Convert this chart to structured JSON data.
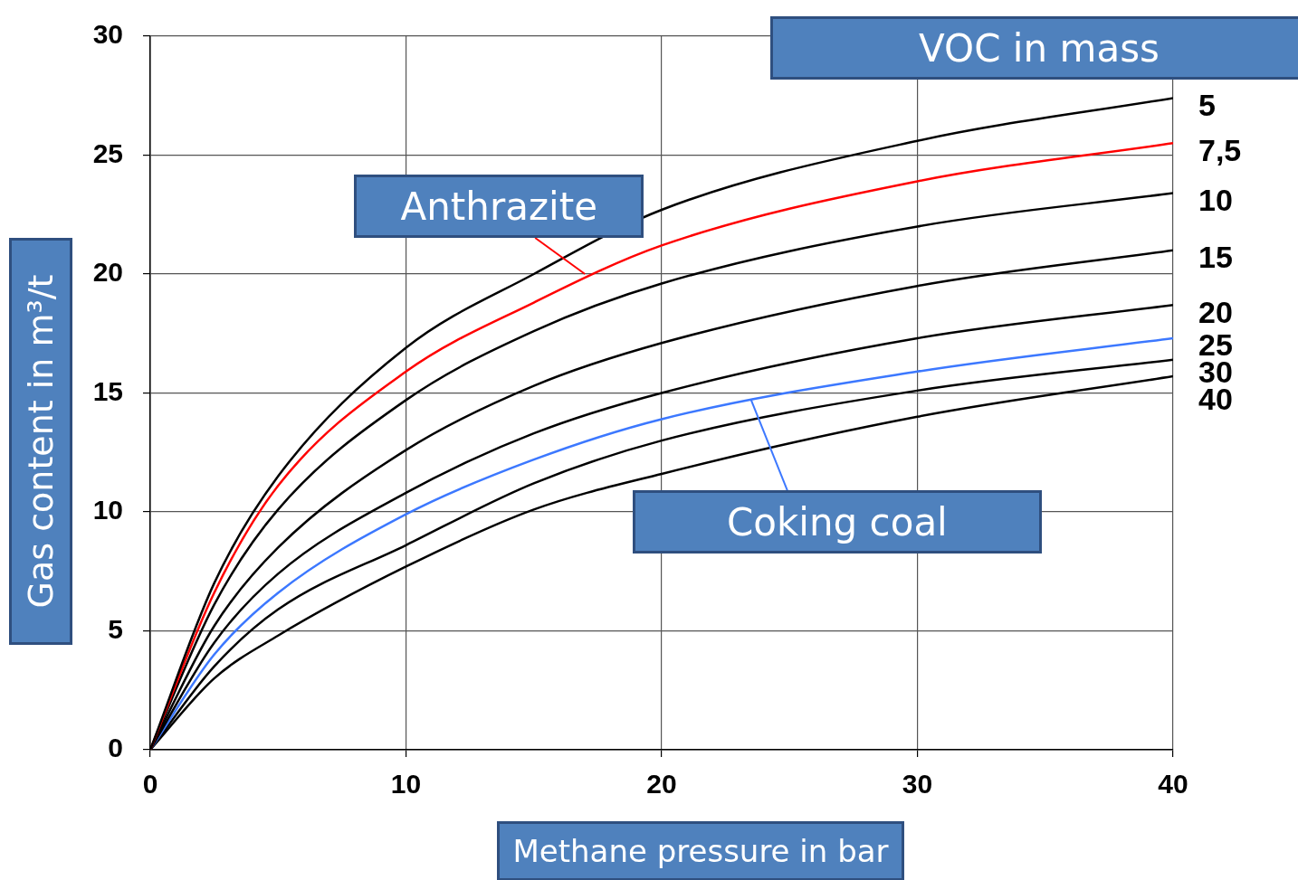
{
  "chart_data": {
    "type": "line",
    "xlabel": "Methane pressure in bar",
    "ylabel": "Gas content in m³/t",
    "legend_title": "VOC in mass",
    "x": [
      0,
      2.5,
      5,
      10,
      15,
      20,
      30,
      40
    ],
    "series": [
      {
        "name": "5",
        "color": "#000000",
        "values": [
          0,
          7.0,
          11.5,
          16.9,
          20.0,
          22.7,
          25.6,
          27.4
        ]
      },
      {
        "name": "7,5",
        "color": "#ff0000",
        "values": [
          0,
          6.6,
          11.1,
          15.9,
          18.8,
          21.2,
          23.9,
          25.5
        ]
      },
      {
        "name": "10",
        "color": "#000000",
        "values": [
          0,
          6.1,
          10.1,
          14.7,
          17.6,
          19.6,
          22.0,
          23.4
        ]
      },
      {
        "name": "15",
        "color": "#000000",
        "values": [
          0,
          5.2,
          8.5,
          12.6,
          15.3,
          17.1,
          19.5,
          21.0
        ]
      },
      {
        "name": "20",
        "color": "#000000",
        "values": [
          0,
          4.5,
          7.4,
          10.8,
          13.3,
          15.0,
          17.3,
          18.7
        ]
      },
      {
        "name": "25",
        "color": "#3c78ff",
        "values": [
          0,
          4.0,
          6.6,
          9.9,
          12.2,
          13.9,
          15.9,
          17.3
        ]
      },
      {
        "name": "30",
        "color": "#000000",
        "values": [
          0,
          3.5,
          5.9,
          8.6,
          11.2,
          13.0,
          15.1,
          16.4
        ]
      },
      {
        "name": "40",
        "color": "#000000",
        "values": [
          0,
          3.0,
          4.8,
          7.7,
          10.1,
          11.6,
          14.0,
          15.7
        ]
      }
    ],
    "xlim": [
      0,
      40
    ],
    "xticks": [
      0,
      10,
      20,
      30,
      40
    ],
    "ylim": [
      0,
      30
    ],
    "yticks": [
      0,
      5,
      10,
      15,
      20,
      25,
      30
    ],
    "grid": true,
    "legend": false,
    "marker": "none",
    "line_style": "solid",
    "annotations": [
      {
        "text": "Anthrazite",
        "x": 17,
        "y": 20
      },
      {
        "text": "Coking coal",
        "x": 23.5,
        "y": 14.7
      }
    ]
  }
}
